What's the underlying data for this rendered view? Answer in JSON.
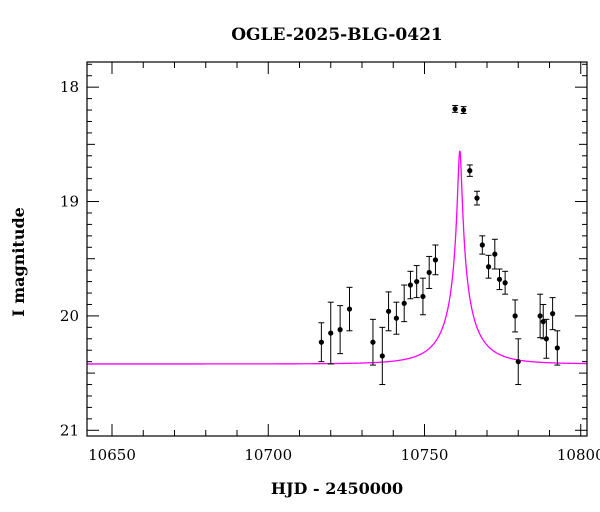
{
  "chart_data": {
    "type": "scatter",
    "title": "OGLE-2025-BLG-0421",
    "xlabel": "HJD - 2450000",
    "ylabel": "I magnitude",
    "xlim": [
      10642,
      10802
    ],
    "ylim": [
      21.05,
      17.78
    ],
    "y_inverted": true,
    "x_ticks": [
      10650,
      10700,
      10750,
      10800
    ],
    "x_tick_labels": [
      "10650",
      "10700",
      "10750",
      "10800"
    ],
    "y_ticks": [
      18,
      19,
      20,
      21
    ],
    "y_tick_labels": [
      "18",
      "19",
      "20",
      "21"
    ],
    "grid": false,
    "legend": "none",
    "colors": {
      "points": "#000000",
      "model": "#ff00ff",
      "axes": "#000000"
    },
    "model_curve": {
      "type": "paczynski",
      "t0": 10761.3,
      "u0": 0.05,
      "tE": 12.5,
      "baseline_mag": 20.42,
      "blend_fraction": 0.24
    },
    "points": [
      {
        "x": 10717.0,
        "y": 20.23,
        "err": 0.17
      },
      {
        "x": 10720.0,
        "y": 20.15,
        "err": 0.27
      },
      {
        "x": 10723.0,
        "y": 20.12,
        "err": 0.21
      },
      {
        "x": 10726.0,
        "y": 19.94,
        "err": 0.19
      },
      {
        "x": 10733.5,
        "y": 20.23,
        "err": 0.2
      },
      {
        "x": 10736.5,
        "y": 20.35,
        "err": 0.25
      },
      {
        "x": 10738.5,
        "y": 19.96,
        "err": 0.17
      },
      {
        "x": 10741.0,
        "y": 20.02,
        "err": 0.14
      },
      {
        "x": 10743.5,
        "y": 19.89,
        "err": 0.16
      },
      {
        "x": 10745.5,
        "y": 19.73,
        "err": 0.12
      },
      {
        "x": 10747.5,
        "y": 19.7,
        "err": 0.14
      },
      {
        "x": 10749.5,
        "y": 19.83,
        "err": 0.16
      },
      {
        "x": 10751.5,
        "y": 19.62,
        "err": 0.14
      },
      {
        "x": 10753.5,
        "y": 19.51,
        "err": 0.13
      },
      {
        "x": 10759.8,
        "y": 18.19,
        "err": 0.03
      },
      {
        "x": 10762.5,
        "y": 18.2,
        "err": 0.03
      },
      {
        "x": 10764.5,
        "y": 18.73,
        "err": 0.05
      },
      {
        "x": 10766.8,
        "y": 18.97,
        "err": 0.06
      },
      {
        "x": 10768.5,
        "y": 19.38,
        "err": 0.08
      },
      {
        "x": 10770.5,
        "y": 19.57,
        "err": 0.1
      },
      {
        "x": 10772.5,
        "y": 19.46,
        "err": 0.13
      },
      {
        "x": 10774.0,
        "y": 19.68,
        "err": 0.09
      },
      {
        "x": 10775.8,
        "y": 19.71,
        "err": 0.1
      },
      {
        "x": 10779.0,
        "y": 20.0,
        "err": 0.14
      },
      {
        "x": 10780.0,
        "y": 20.4,
        "err": 0.2
      },
      {
        "x": 10787.0,
        "y": 20.0,
        "err": 0.19
      },
      {
        "x": 10788.0,
        "y": 20.05,
        "err": 0.15
      },
      {
        "x": 10789.0,
        "y": 20.2,
        "err": 0.17
      },
      {
        "x": 10791.0,
        "y": 19.98,
        "err": 0.14
      },
      {
        "x": 10792.5,
        "y": 20.28,
        "err": 0.15
      }
    ]
  }
}
